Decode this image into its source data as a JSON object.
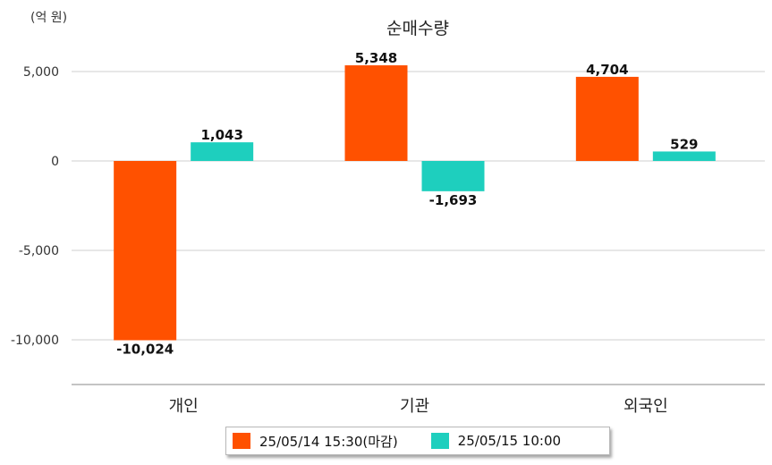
{
  "chart_data": {
    "type": "bar",
    "title": "순매수량",
    "unit_label": "(억 원)",
    "categories": [
      "개인",
      "기관",
      "외국인"
    ],
    "series": [
      {
        "name": "25/05/14 15:30(마감)",
        "color": "#ff5100",
        "values": [
          -10024,
          5348,
          4704
        ],
        "labels": [
          "-10,024",
          "5,348",
          "4,704"
        ]
      },
      {
        "name": "25/05/15 10:00",
        "color": "#1ecfbe",
        "values": [
          1043,
          -1693,
          529
        ],
        "labels": [
          "1,043",
          "-1,693",
          "529"
        ]
      }
    ],
    "yticks": [
      5000,
      0,
      -5000,
      -10000
    ],
    "ytick_labels": [
      "5,000",
      "0",
      "-5,000",
      "-10,000"
    ],
    "ylim": [
      -12500,
      6000
    ],
    "grid": true,
    "legend_position": "bottom"
  }
}
